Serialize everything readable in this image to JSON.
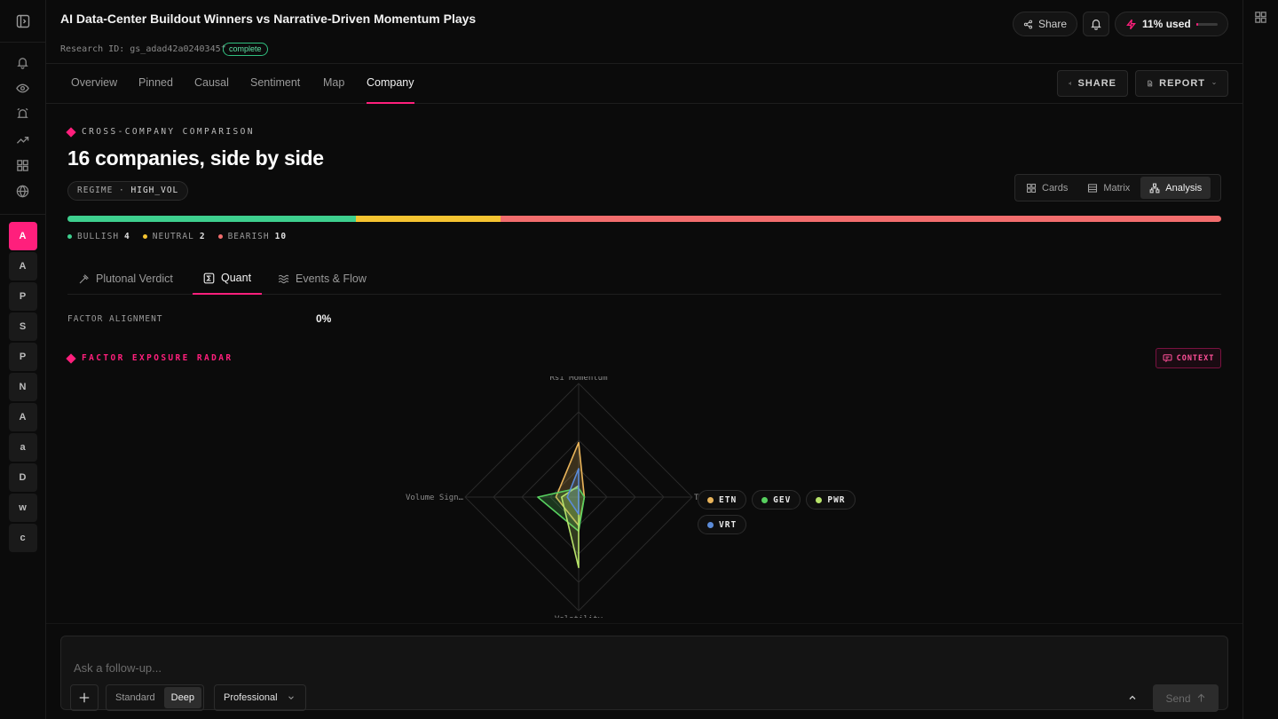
{
  "header": {
    "title": "AI Data-Center Buildout Winners vs Narrative-Driven Momentum Plays",
    "research_id": "Research ID: gs_adad42a0240345f",
    "status": "complete",
    "share_label": "Share",
    "usage_label": "11% used",
    "usage_fraction": 0.11
  },
  "left_rail": {
    "icons": [
      "panel-toggle-icon",
      "bell-icon",
      "eye-icon",
      "alarm-icon",
      "trending-up-icon",
      "grid-icon",
      "globe-icon"
    ],
    "letters": [
      "A",
      "A",
      "P",
      "S",
      "P",
      "N",
      "A",
      "a",
      "D",
      "w",
      "c"
    ]
  },
  "tabs": [
    "Overview",
    "Pinned",
    "Causal",
    "Sentiment",
    "Map",
    "Company"
  ],
  "active_tab": "Company",
  "toolbar": {
    "share_label": "SHARE",
    "report_label": "REPORT"
  },
  "comparison": {
    "kicker": "CROSS-COMPANY COMPARISON",
    "title": "16 companies, side by side",
    "regime_label": "REGIME",
    "regime_value": "HIGH_VOL",
    "views": [
      "Cards",
      "Matrix",
      "Analysis"
    ],
    "active_view": "Analysis"
  },
  "sentiment": {
    "bullish_label": "BULLISH",
    "bullish_count": "4",
    "neutral_label": "NEUTRAL",
    "neutral_count": "2",
    "bearish_label": "BEARISH",
    "bearish_count": "10",
    "colors": {
      "bullish": "#3ecf8e",
      "neutral": "#f5c431",
      "bearish": "#f26d6d"
    }
  },
  "subtabs": [
    "Plutonal Verdict",
    "Quant",
    "Events & Flow"
  ],
  "active_subtab": "Quant",
  "factor": {
    "label": "FACTOR ALIGNMENT",
    "value": "0%"
  },
  "radar": {
    "kicker": "FACTOR EXPOSURE RADAR",
    "context_label": "CONTEXT",
    "axes": [
      "Rsi Momentum",
      "Trend Stren…",
      "Volatility",
      "Volume Sign…"
    ],
    "series": [
      {
        "name": "ETN",
        "color": "#e9b45a",
        "values": [
          0.48,
          0.05,
          0.25,
          0.2
        ]
      },
      {
        "name": "GEV",
        "color": "#57d05f",
        "values": [
          0.08,
          0.05,
          0.3,
          0.36
        ]
      },
      {
        "name": "PWR",
        "color": "#b7e36a",
        "values": [
          0.1,
          0.0,
          0.62,
          0.15
        ]
      },
      {
        "name": "VRT",
        "color": "#5b8bd8",
        "values": [
          0.25,
          0.0,
          0.15,
          0.1
        ]
      }
    ]
  },
  "composer": {
    "placeholder": "Ask a follow-up...",
    "modes": [
      "Standard",
      "Deep"
    ],
    "active_mode": "Deep",
    "style": "Professional",
    "send_label": "Send"
  }
}
